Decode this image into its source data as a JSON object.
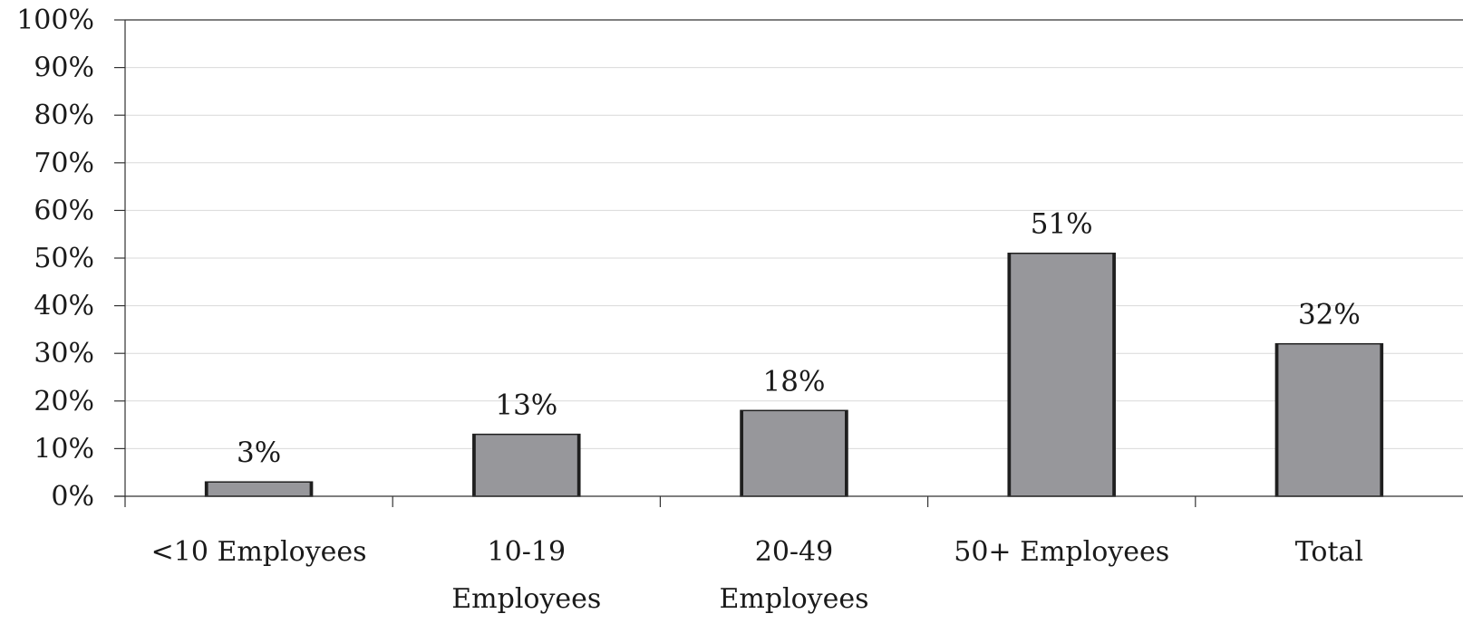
{
  "chart_data": {
    "type": "bar",
    "categories": [
      [
        "<10 Employees"
      ],
      [
        "10-19",
        "Employees"
      ],
      [
        "20-49",
        "Employees"
      ],
      [
        "50+ Employees"
      ],
      [
        "Total"
      ]
    ],
    "values": [
      3,
      13,
      18,
      51,
      32
    ],
    "data_labels": [
      "3%",
      "13%",
      "18%",
      "51%",
      "32%"
    ],
    "ylim": [
      0,
      100
    ],
    "y_ticks": [
      0,
      10,
      20,
      30,
      40,
      50,
      60,
      70,
      80,
      90,
      100
    ],
    "y_tick_labels": [
      "0%",
      "10%",
      "20%",
      "30%",
      "40%",
      "50%",
      "60%",
      "70%",
      "80%",
      "90%",
      "100%"
    ],
    "title": "",
    "xlabel": "",
    "ylabel": "",
    "grid": true,
    "legend": "none",
    "colors": {
      "bar_fill": "#97979b",
      "bar_edge": "#1f1f1f",
      "gridline": "#d9d9d9",
      "axis": "#333333"
    }
  }
}
